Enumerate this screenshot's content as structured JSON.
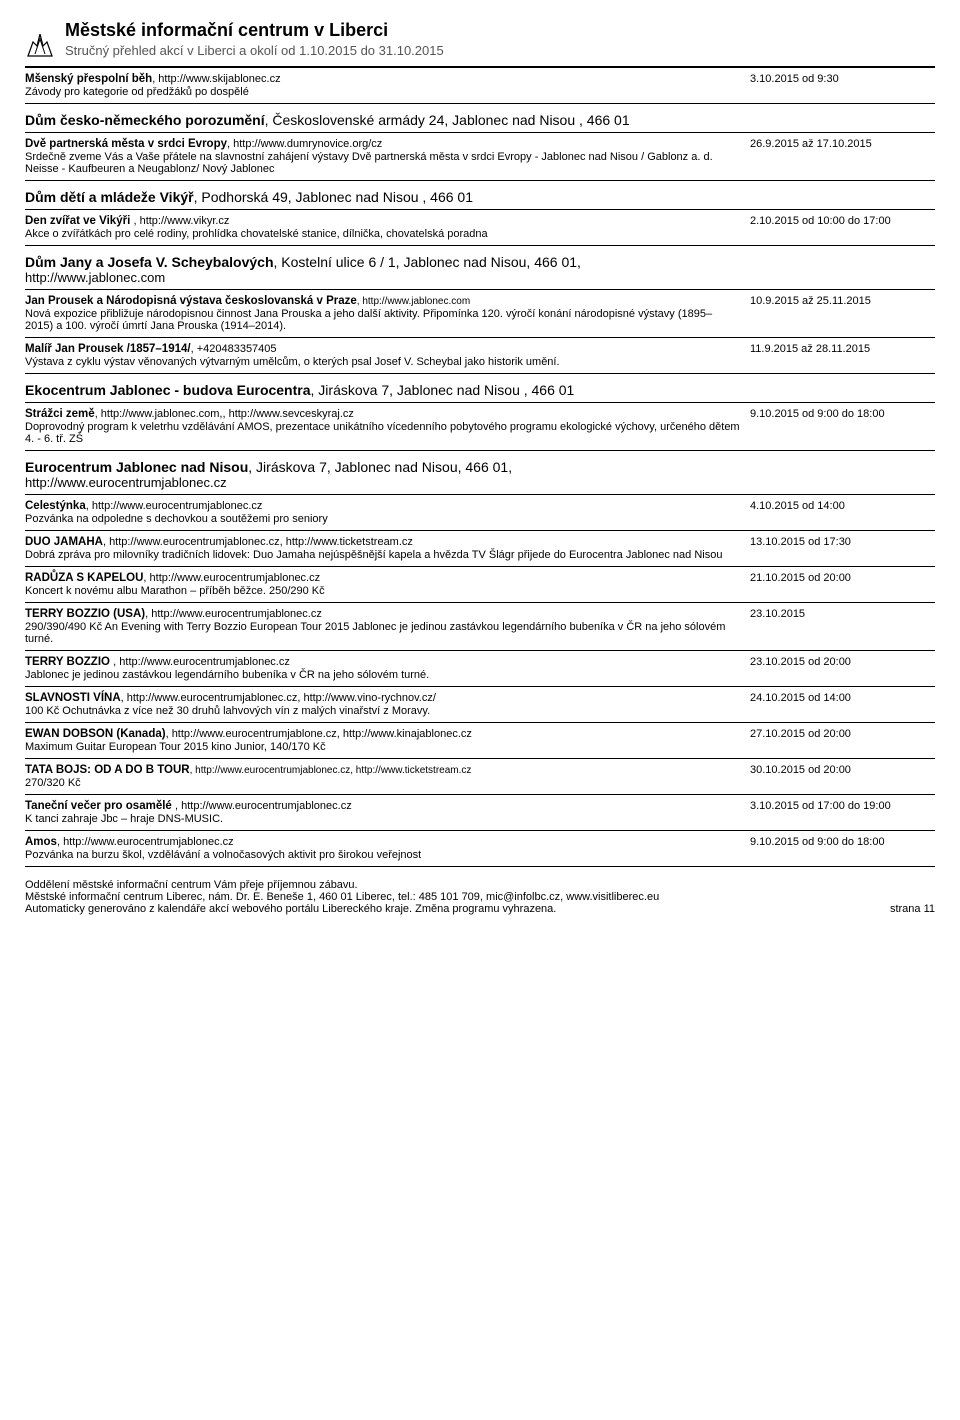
{
  "header": {
    "title": "Městské informační centrum v Liberci",
    "subtitle": "Stručný přehled akcí v Liberci a okolí od 1.10.2015 do 31.10.2015"
  },
  "top_event": {
    "title": "Mšenský přespolní běh",
    "url": ", http://www.skijablonec.cz",
    "desc": "Závody pro kategorie od předžáků po dospělé",
    "date": "3.10.2015 od 9:30"
  },
  "venues": [
    {
      "name": "Dům česko-německého porozumění",
      "extra": ", Československé armády 24, Jablonec nad Nisou , 466 01",
      "events": [
        {
          "title": "Dvě partnerská města v srdci Evropy",
          "url": ", http://www.dumrynovice.org/cz",
          "desc": "Srdečně zveme Vás a Vaše přátele na slavnostní zahájení výstavy Dvě partnerská města v srdci Evropy - Jablonec nad Nisou / Gablonz a. d. Neisse - Kaufbeuren a Neugablonz/ Nový Jablonec",
          "date": "26.9.2015 až 17.10.2015"
        }
      ]
    },
    {
      "name": "Dům dětí a mládeže Vikýř",
      "extra": ", Podhorská 49, Jablonec nad Nisou , 466 01",
      "events": [
        {
          "title": "Den zvířat ve Vikýři ",
          "url": ", http://www.vikyr.cz",
          "desc": "Akce o zvířátkách pro celé rodiny, prohlídka chovatelské stanice, dílnička, chovatelská poradna",
          "date": "2.10.2015 od 10:00 do 17:00"
        }
      ]
    },
    {
      "name": "Dům Jany a Josefa V. Scheybalových",
      "extra": ", Kostelní ulice 6 / 1, Jablonec nad Nisou, 466 01,",
      "link": "http://www.jablonec.com",
      "events": [
        {
          "title": "Jan Prousek a Národopisná výstava českoslovanská v Praze",
          "url": ", http://www.jablonec.com",
          "url_sm": true,
          "desc": "Nová expozice přibližuje národopisnou činnost Jana Prouska a jeho další aktivity. Připomínka 120. výročí konání národopisné výstavy (1895–2015) a 100. výročí úmrtí Jana Prouska (1914–2014).",
          "date": "10.9.2015 až 25.11.2015"
        },
        {
          "title": "Malíř Jan Prousek /1857–1914/",
          "url": ", +420483357405",
          "desc": "Výstava z cyklu výstav věnovaných výtvarným umělcům, o kterých psal Josef V. Scheybal jako historik umění.",
          "date": "11.9.2015 až 28.11.2015"
        }
      ]
    },
    {
      "name": "Ekocentrum Jablonec - budova Eurocentra",
      "extra": ", Jiráskova 7, Jablonec nad Nisou , 466 01",
      "events": [
        {
          "title": "Strážci země",
          "url": ", http://www.jablonec.com,, http://www.sevceskyraj.cz",
          "desc": "Doprovodný program k veletrhu vzdělávání AMOS, prezentace unikátního vícedenního pobytového programu ekologické výchovy, určeného dětem 4. - 6. tř. ZŠ",
          "date": "9.10.2015 od 9:00 do 18:00"
        }
      ]
    },
    {
      "name": "Eurocentrum Jablonec nad Nisou",
      "extra": ", Jiráskova 7, Jablonec nad Nisou, 466 01,",
      "link": "http://www.eurocentrumjablonec.cz",
      "events": [
        {
          "title": "Celestýnka",
          "url": ", http://www.eurocentrumjablonec.cz",
          "desc": "Pozvánka na odpoledne s dechovkou a soutěžemi pro seniory",
          "date": "4.10.2015 od 14:00"
        },
        {
          "title": "DUO JAMAHA",
          "url": ", http://www.eurocentrumjablonec.cz, http://www.ticketstream.cz",
          "desc": "Dobrá zpráva pro milovníky tradičních lidovek: Duo Jamaha nejúspěšnější kapela a hvězda TV Šlágr přijede do Eurocentra Jablonec nad Nisou",
          "date": "13.10.2015 od 17:30"
        },
        {
          "title": "RADŮZA S KAPELOU",
          "url": ", http://www.eurocentrumjablonec.cz",
          "desc": "Koncert k novému albu Marathon – příběh běžce. 250/290 Kč",
          "date": "21.10.2015 od 20:00"
        },
        {
          "title": "TERRY BOZZIO (USA)",
          "url": ", http://www.eurocentrumjablonec.cz",
          "desc": "290/390/490 Kč An Evening with Terry Bozzio European Tour 2015 Jablonec je jedinou zastávkou legendárního bubeníka v ČR na jeho sólovém turné.",
          "date": "23.10.2015"
        },
        {
          "title": "TERRY BOZZIO ",
          "url": ", http://www.eurocentrumjablonec.cz",
          "desc": "Jablonec je jedinou zastávkou legendárního bubeníka v ČR na jeho sólovém turné.",
          "date": "23.10.2015 od 20:00"
        },
        {
          "title": "SLAVNOSTI VÍNA",
          "url": ", http://www.eurocentrumjablonec.cz, http://www.vino-rychnov.cz/",
          "desc": "100 Kč Ochutnávka z více než 30 druhů lahvových vín z malých vinařství z Moravy.",
          "date": "24.10.2015 od 14:00"
        },
        {
          "title": "EWAN DOBSON (Kanada)",
          "url": ", http://www.eurocentrumjablone.cz, http://www.kinajablonec.cz",
          "desc": "Maximum Guitar European Tour 2015 kino Junior, 140/170 Kč",
          "date": "27.10.2015 od 20:00"
        },
        {
          "title": "TATA BOJS: OD A DO B TOUR",
          "url": ", http://www.eurocentrumjablonec.cz, http://www.ticketstream.cz",
          "url_sm": true,
          "desc": "270/320 Kč",
          "date": "30.10.2015 od 20:00"
        },
        {
          "title": "Taneční večer pro osamělé ",
          "url": ", http://www.eurocentrumjablonec.cz",
          "desc": "K tanci zahraje Jbc – hraje DNS-MUSIC.",
          "date": "3.10.2015 od 17:00 do 19:00"
        },
        {
          "title": "Amos",
          "url": ", http://www.eurocentrumjablonec.cz",
          "desc": "Pozvánka na burzu škol, vzdělávání a volnočasových aktivit pro širokou veřejnost",
          "date": "9.10.2015 od 9:00 do 18:00"
        }
      ]
    }
  ],
  "footer": {
    "line1": "Oddělení městské informační centrum Vám přeje příjemnou zábavu.",
    "line2": "Městské informační centrum Liberec, nám. Dr. E. Beneše 1, 460 01 Liberec, tel.: 485 101 709, mic@infolbc.cz, www.visitliberec.eu",
    "line3": "Automaticky generováno z kalendáře akcí webového portálu Libereckého kraje. Změna programu vyhrazena.",
    "page": "strana 11"
  }
}
